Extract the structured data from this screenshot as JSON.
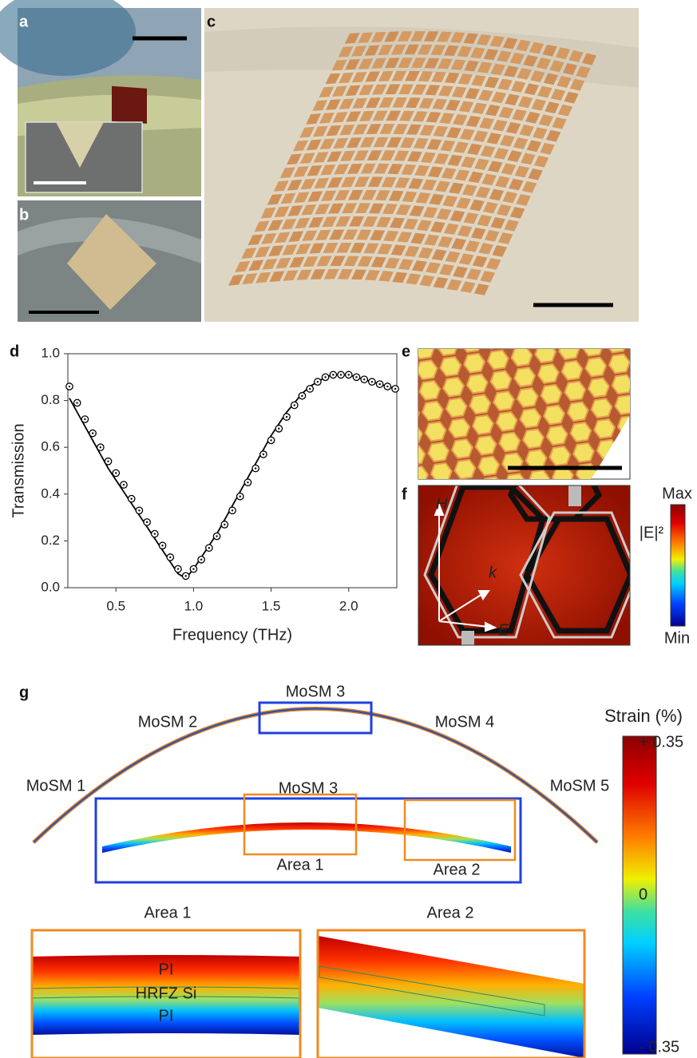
{
  "panel_labels": [
    "a",
    "b",
    "c",
    "d",
    "e",
    "f",
    "g"
  ],
  "chart_data": {
    "type": "line",
    "xlabel": "Frequency (THz)",
    "ylabel": "Transmission",
    "x": [
      0.2,
      0.25,
      0.3,
      0.35,
      0.4,
      0.45,
      0.5,
      0.55,
      0.6,
      0.65,
      0.7,
      0.75,
      0.8,
      0.85,
      0.9,
      0.95,
      1.0,
      1.05,
      1.1,
      1.15,
      1.2,
      1.25,
      1.3,
      1.35,
      1.4,
      1.45,
      1.5,
      1.55,
      1.6,
      1.65,
      1.7,
      1.75,
      1.8,
      1.85,
      1.9,
      1.95,
      2.0,
      2.05,
      2.1,
      2.15,
      2.2,
      2.25,
      2.3
    ],
    "series": [
      {
        "style": "line",
        "color": "#000000",
        "values": [
          0.81,
          0.75,
          0.69,
          0.63,
          0.57,
          0.51,
          0.46,
          0.41,
          0.36,
          0.31,
          0.26,
          0.21,
          0.16,
          0.11,
          0.06,
          0.04,
          0.08,
          0.13,
          0.18,
          0.23,
          0.29,
          0.35,
          0.41,
          0.47,
          0.53,
          0.59,
          0.65,
          0.7,
          0.75,
          0.79,
          0.83,
          0.86,
          0.88,
          0.9,
          0.91,
          0.91,
          0.91,
          0.9,
          0.89,
          0.88,
          0.87,
          0.86,
          0.85
        ]
      },
      {
        "style": "markers",
        "color": "#000000",
        "values": [
          0.86,
          0.79,
          0.72,
          0.66,
          0.6,
          0.54,
          0.49,
          0.44,
          0.38,
          0.33,
          0.28,
          0.23,
          0.18,
          0.13,
          0.08,
          0.05,
          0.08,
          0.12,
          0.17,
          0.22,
          0.27,
          0.33,
          0.39,
          0.45,
          0.51,
          0.57,
          0.63,
          0.68,
          0.73,
          0.78,
          0.82,
          0.85,
          0.88,
          0.9,
          0.91,
          0.91,
          0.91,
          0.9,
          0.89,
          0.88,
          0.87,
          0.86,
          0.85
        ]
      }
    ],
    "xlim": [
      0.19,
      2.31
    ],
    "ylim": [
      0,
      1
    ],
    "xticks": [
      0.5,
      {
        "value": 1,
        "label": "1.0"
      },
      1.5,
      {
        "value": 2,
        "label": "2.0"
      }
    ],
    "yticks": [
      {
        "value": 0,
        "label": "0.0"
      },
      0.2,
      0.4,
      0.6,
      0.8,
      {
        "value": 1,
        "label": "1.0"
      }
    ]
  },
  "panel_f": {
    "max": "Max",
    "min": "Min",
    "colorbar_label": "|E|²",
    "h": "H",
    "k": "k",
    "e": "E"
  },
  "panel_g": {
    "arc_labels": [
      "MoSM 1",
      "MoSM 2",
      "MoSM 3",
      "MoSM 4",
      "MoSM 5"
    ],
    "inset_title": "MoSM 3",
    "area_labels": [
      "Area 1",
      "Area 2"
    ],
    "zoom_titles": [
      "Area 1",
      "Area 2"
    ],
    "layers": [
      "PI",
      "HRFZ Si",
      "PI"
    ],
    "colorbar_title": "Strain (%)",
    "colorbar_ticks": [
      "+ 0.35",
      "0",
      "- 0.35"
    ]
  }
}
